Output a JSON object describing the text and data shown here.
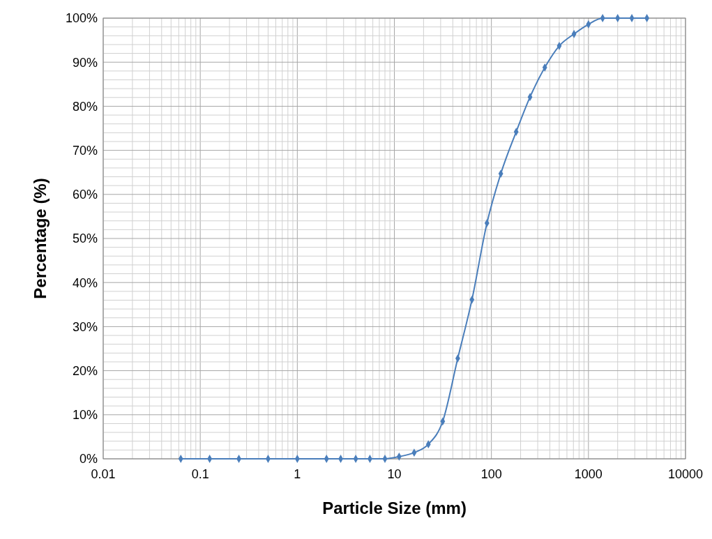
{
  "chart_data": {
    "type": "line",
    "xlabel": "Particle Size (mm)",
    "ylabel": "Percentage (%)",
    "log": "x",
    "xlim": [
      0.01,
      10000
    ],
    "xticks": [
      0.01,
      0.1,
      1,
      10,
      100,
      1000,
      10000
    ],
    "ylim": [
      0,
      100
    ],
    "yticks": [
      {
        "value": 0,
        "label": "0%"
      },
      {
        "value": 10,
        "label": "10%"
      },
      {
        "value": 20,
        "label": "20%"
      },
      {
        "value": 30,
        "label": "30%"
      },
      {
        "value": 40,
        "label": "40%"
      },
      {
        "value": 50,
        "label": "50%"
      },
      {
        "value": 60,
        "label": "60%"
      },
      {
        "value": 70,
        "label": "70%"
      },
      {
        "value": 80,
        "label": "80%"
      },
      {
        "value": 90,
        "label": "90%"
      },
      {
        "value": 100,
        "label": "100%"
      }
    ],
    "grid": true,
    "marker": "diamond",
    "line_style": "solid",
    "series": [
      {
        "color": "#4a7ebb",
        "x": [
          0.063,
          0.125,
          0.25,
          0.5,
          1,
          2,
          2.8,
          4,
          5.6,
          8,
          11.2,
          16,
          22.4,
          31.5,
          45,
          63,
          90,
          125,
          180,
          250,
          355,
          500,
          710,
          1000,
          1400,
          2000,
          2800,
          4000
        ],
        "values": [
          0,
          0,
          0,
          0,
          0,
          0,
          0,
          0,
          0,
          0,
          0.5,
          1.4,
          3.3,
          8.5,
          22.8,
          36.1,
          53.5,
          64.7,
          74.2,
          82.1,
          88.8,
          93.7,
          96.4,
          98.6,
          100,
          100,
          100,
          100
        ]
      }
    ]
  }
}
